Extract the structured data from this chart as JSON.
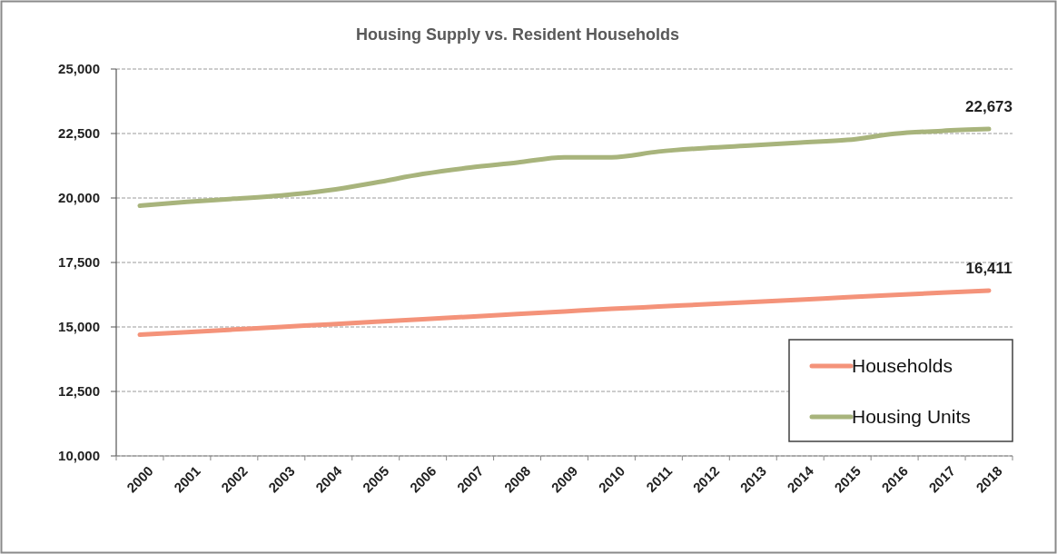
{
  "chart_data": {
    "type": "line",
    "title": "Housing Supply vs. Resident Households",
    "categories": [
      "2000",
      "2001",
      "2002",
      "2003",
      "2004",
      "2005",
      "2006",
      "2007",
      "2008",
      "2009",
      "2010",
      "2011",
      "2012",
      "2013",
      "2014",
      "2015",
      "2016",
      "2017",
      "2018"
    ],
    "series": [
      {
        "name": "Households",
        "color": "#f4937a",
        "values": [
          14700,
          14800,
          14900,
          15000,
          15100,
          15200,
          15300,
          15400,
          15500,
          15600,
          15700,
          15790,
          15880,
          15970,
          16060,
          16150,
          16240,
          16330,
          16411
        ],
        "value_labels": [
          null,
          null,
          null,
          null,
          null,
          null,
          null,
          null,
          null,
          null,
          null,
          null,
          null,
          null,
          null,
          null,
          null,
          null,
          "16,411"
        ]
      },
      {
        "name": "Housing Units",
        "color": "#a8b47c",
        "values": [
          19700,
          19850,
          19970,
          20100,
          20300,
          20600,
          20930,
          21180,
          21370,
          21580,
          21580,
          21800,
          21940,
          22040,
          22150,
          22250,
          22490,
          22600,
          22673
        ],
        "value_labels": [
          null,
          null,
          null,
          null,
          null,
          null,
          null,
          null,
          null,
          null,
          null,
          null,
          null,
          null,
          null,
          null,
          null,
          null,
          "22,673"
        ]
      }
    ],
    "ylim": [
      10000,
      25000
    ],
    "yticks": [
      {
        "value": 10000,
        "label": "10,000"
      },
      {
        "value": 12500,
        "label": "12,500"
      },
      {
        "value": 15000,
        "label": "15,000"
      },
      {
        "value": 17500,
        "label": "17,500"
      },
      {
        "value": 20000,
        "label": "20,000"
      },
      {
        "value": 22500,
        "label": "22,500"
      },
      {
        "value": 25000,
        "label": "25,000"
      }
    ],
    "grid": "y",
    "legend": "bottom right"
  }
}
